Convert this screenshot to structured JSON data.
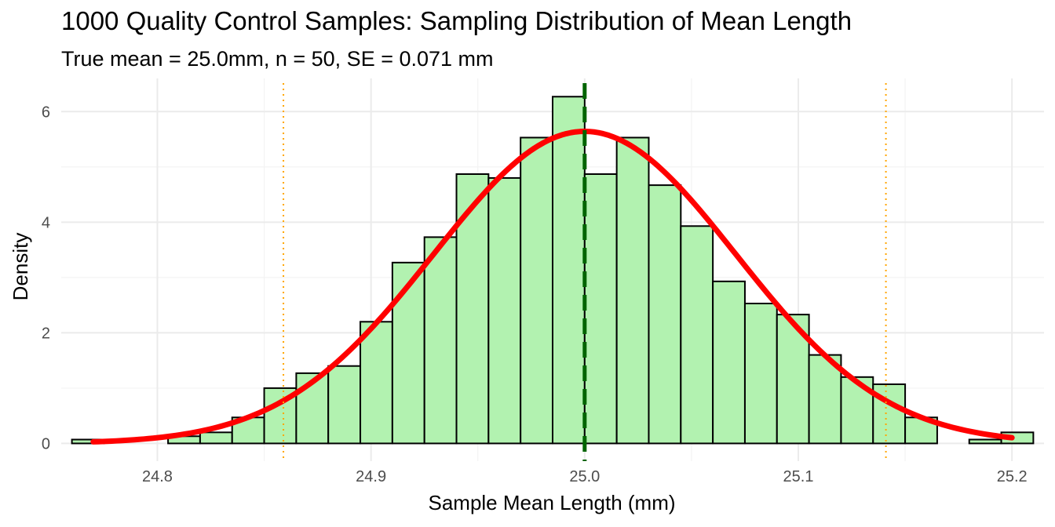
{
  "chart_data": {
    "type": "bar",
    "title": "1000 Quality Control Samples: Sampling Distribution of Mean Length",
    "subtitle": "True mean = 25.0mm, n = 50, SE = 0.071 mm",
    "xlabel": "Sample Mean Length (mm)",
    "ylabel": "Density",
    "xlim": [
      24.755,
      25.215
    ],
    "ylim": [
      -0.32,
      6.6
    ],
    "x_ticks": [
      "24.8",
      "24.9",
      "25.0",
      "25.1",
      "25.2"
    ],
    "x_tick_values": [
      24.8,
      24.9,
      25.0,
      25.1,
      25.2
    ],
    "y_ticks": [
      "0",
      "2",
      "4",
      "6"
    ],
    "y_tick_values": [
      0,
      2,
      4,
      6
    ],
    "grid": true,
    "histogram": {
      "bin_width": 0.015,
      "bin_start": 24.76,
      "densities": [
        0.07,
        0.0,
        0.0,
        0.13,
        0.2,
        0.47,
        1.0,
        1.27,
        1.4,
        2.2,
        3.27,
        3.73,
        4.87,
        4.8,
        5.53,
        6.27,
        4.87,
        5.53,
        4.67,
        3.93,
        2.93,
        2.53,
        2.33,
        1.6,
        1.2,
        1.07,
        0.47,
        0.0,
        0.07,
        0.2
      ],
      "fill_color": "#b2f2b0",
      "edge_color": "#000000"
    },
    "normal_curve": {
      "mean": 25.0,
      "sd": 0.0707,
      "x_from": 24.77,
      "x_to": 25.2,
      "color": "#ff0000"
    },
    "reference_lines": [
      {
        "x": 25.0,
        "style": "dashed",
        "color": "#006400"
      },
      {
        "x": 24.859,
        "style": "dotted",
        "color": "#ffa500"
      },
      {
        "x": 25.141,
        "style": "dotted",
        "color": "#ffa500"
      }
    ]
  }
}
